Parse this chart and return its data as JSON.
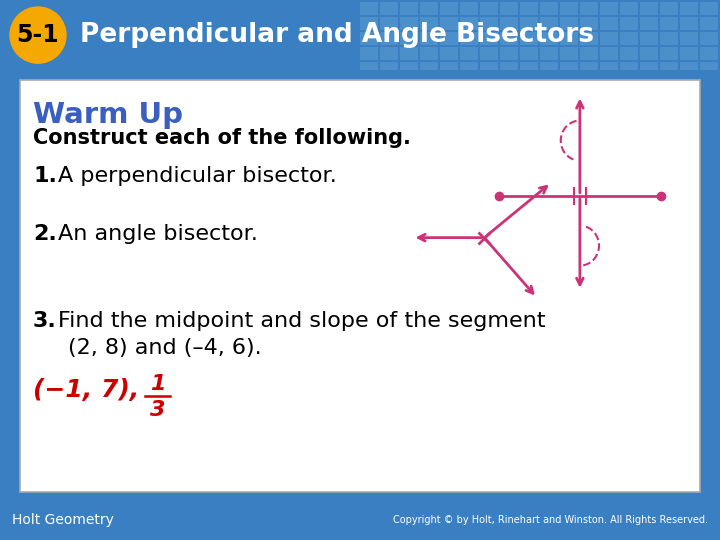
{
  "header_bg": "#3A7FC1",
  "header_tile_color": "#5A9FD4",
  "header_badge_color": "#F5A800",
  "header_badge_text": "5-1",
  "header_title": "Perpendicular and Angle Bisectors",
  "content_bg": "#FFFFFF",
  "footer_bg": "#3A7FC1",
  "footer_left": "Holt Geometry",
  "footer_right": "Copyright © by Holt, Rinehart and Winston. All Rights Reserved.",
  "warm_up_title": "Warm Up",
  "subtitle": "Construct each of the following.",
  "item1_bold": "1.",
  "item1_text": " A perpendicular bisector.",
  "item2_bold": "2.",
  "item2_text": " An angle bisector.",
  "item3_bold": "3.",
  "item3_text": " Find the midpoint and slope of the segment",
  "item3b_text": "(2, 8) and (–4, 6).",
  "answer_text": "(−1, 7),",
  "answer_frac_num": "1",
  "answer_frac_den": "3",
  "magenta": "#CC3377",
  "answer_color": "#CC0000",
  "text_color": "#000000",
  "warm_up_color": "#3A5FC0"
}
